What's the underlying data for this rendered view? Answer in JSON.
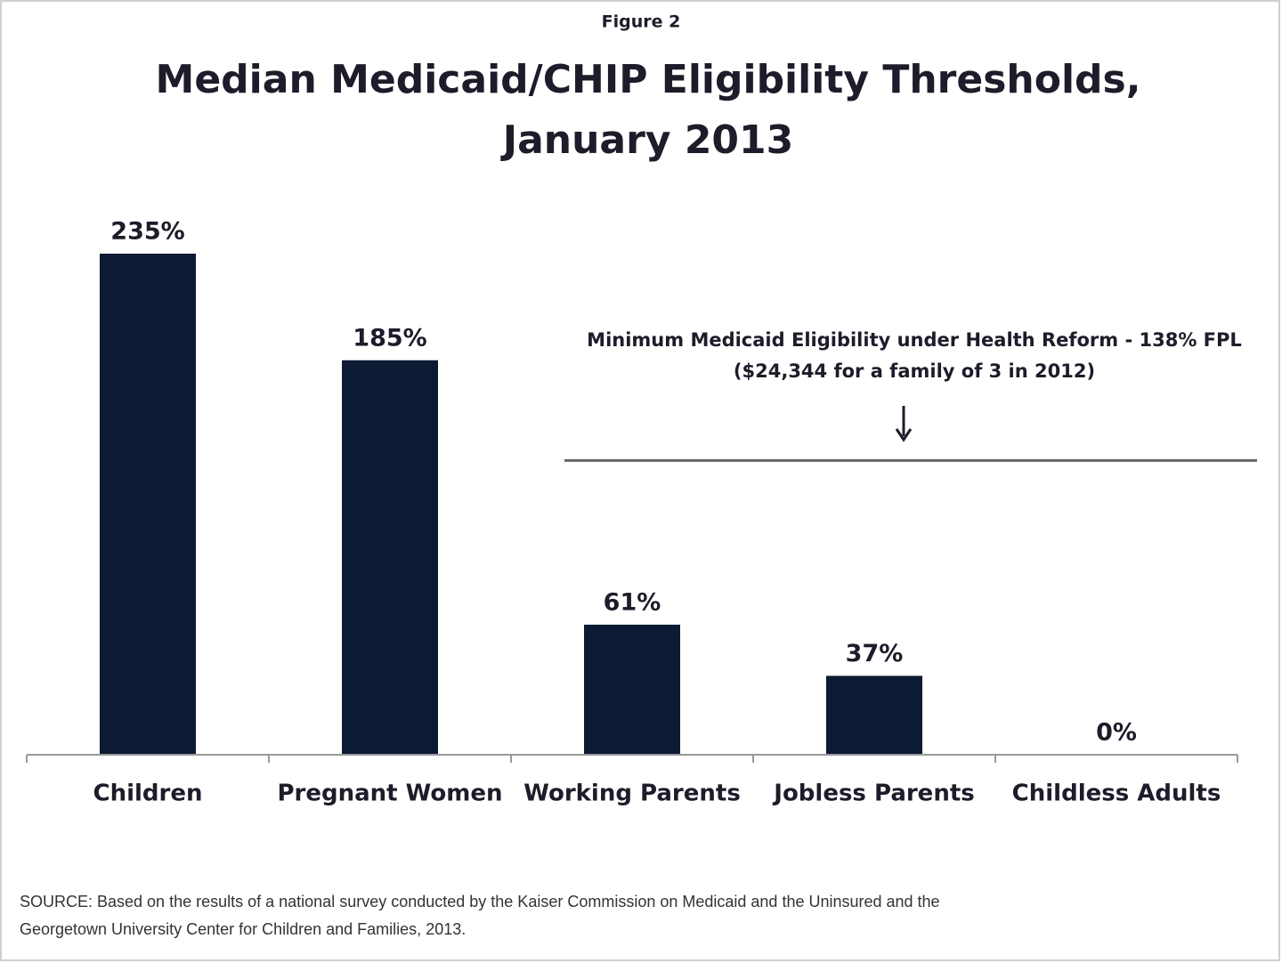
{
  "chart_data": {
    "type": "bar",
    "figure_label": "Figure 2",
    "title": [
      "Median Medicaid/CHIP Eligibility Thresholds,",
      "January 2013"
    ],
    "categories": [
      "Children",
      "Pregnant Women",
      "Working Parents",
      "Jobless Parents",
      "Childless Adults"
    ],
    "values": [
      235,
      185,
      61,
      37,
      0
    ],
    "value_labels": [
      "235%",
      "185%",
      "61%",
      "37%",
      "0%"
    ],
    "color": "#0d1a33",
    "reference_line": {
      "value": 138,
      "color": "#666666",
      "label": [
        "Minimum Medicaid Eligibility under Health Reform - 138% FPL",
        "($24,344 for a family of 3 in 2012)"
      ]
    },
    "source": [
      "SOURCE: Based on the results of a national survey conducted by the Kaiser Commission on Medicaid and the Uninsured and the",
      "Georgetown University Center for Children and Families, 2013."
    ]
  }
}
